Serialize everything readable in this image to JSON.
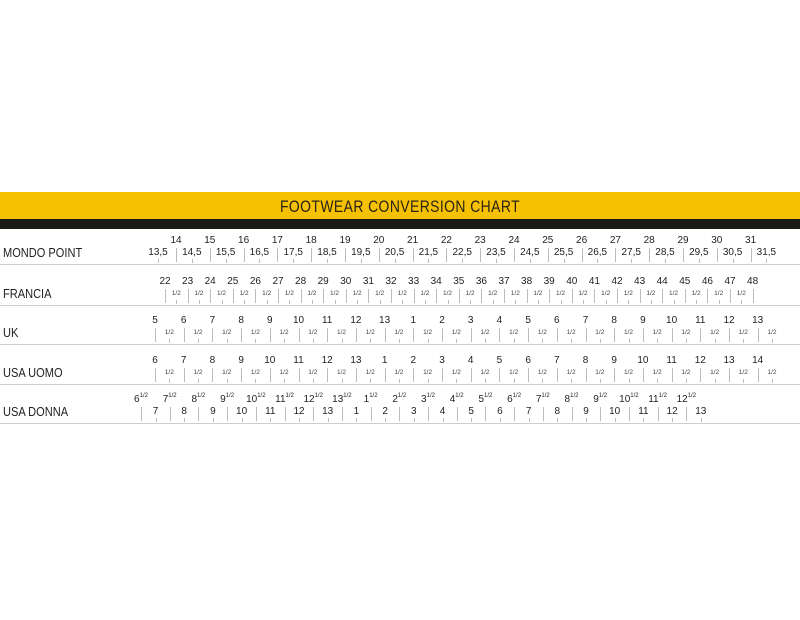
{
  "title": "FOOTWEAR CONVERSION CHART",
  "colors": {
    "band": "#f6c102",
    "bar": "#1c1a17",
    "separator": "#cfcfcf"
  },
  "chart_data": {
    "type": "table",
    "title": "FOOTWEAR CONVERSION CHART",
    "rows": [
      {
        "label": "MONDO POINT",
        "major": [
          "14",
          "15",
          "16",
          "17",
          "18",
          "19",
          "20",
          "21",
          "22",
          "23",
          "24",
          "25",
          "26",
          "27",
          "28",
          "29",
          "30",
          "31"
        ],
        "minor": [
          "13,5",
          "14,5",
          "15,5",
          "16,5",
          "17,5",
          "18,5",
          "19,5",
          "20,5",
          "21,5",
          "22,5",
          "23,5",
          "24,5",
          "25,5",
          "26,5",
          "27,5",
          "28,5",
          "29,5",
          "30,5",
          "31,5"
        ]
      },
      {
        "label": "FRANCIA",
        "major": [
          "22",
          "23",
          "24",
          "25",
          "26",
          "27",
          "28",
          "29",
          "30",
          "31",
          "32",
          "33",
          "34",
          "35",
          "36",
          "37",
          "38",
          "39",
          "40",
          "41",
          "42",
          "43",
          "44",
          "45",
          "46",
          "47",
          "48"
        ],
        "minor": [
          "1/2",
          "1/2",
          "1/2",
          "1/2",
          "1/2",
          "1/2",
          "1/2",
          "1/2",
          "1/2",
          "1/2",
          "1/2",
          "1/2",
          "1/2",
          "1/2",
          "1/2",
          "1/2",
          "1/2",
          "1/2",
          "1/2",
          "1/2",
          "1/2",
          "1/2",
          "1/2",
          "1/2",
          "1/2",
          "1/2"
        ]
      },
      {
        "label": "UK",
        "major": [
          "5",
          "6",
          "7",
          "8",
          "9",
          "10",
          "11",
          "12",
          "13",
          "1",
          "2",
          "3",
          "4",
          "5",
          "6",
          "7",
          "8",
          "9",
          "10",
          "11",
          "12",
          "13"
        ],
        "minor": [
          "1/2",
          "1/2",
          "1/2",
          "1/2",
          "1/2",
          "1/2",
          "1/2",
          "1/2",
          "1/2",
          "1/2",
          "1/2",
          "1/2",
          "1/2",
          "1/2",
          "1/2",
          "1/2",
          "1/2",
          "1/2",
          "1/2",
          "1/2",
          "1/2",
          "1/2"
        ]
      },
      {
        "label": "USA UOMO",
        "major": [
          "6",
          "7",
          "8",
          "9",
          "10",
          "11",
          "12",
          "13",
          "1",
          "2",
          "3",
          "4",
          "5",
          "6",
          "7",
          "8",
          "9",
          "10",
          "11",
          "12",
          "13",
          "14"
        ],
        "minor": [
          "1/2",
          "1/2",
          "1/2",
          "1/2",
          "1/2",
          "1/2",
          "1/2",
          "1/2",
          "1/2",
          "1/2",
          "1/2",
          "1/2",
          "1/2",
          "1/2",
          "1/2",
          "1/2",
          "1/2",
          "1/2",
          "1/2",
          "1/2",
          "1/2",
          "1/2"
        ]
      },
      {
        "label": "USA DONNA",
        "major": [
          {
            "base": "6",
            "sup": "1/2"
          },
          {
            "base": "7",
            "sup": "1/2"
          },
          {
            "base": "8",
            "sup": "1/2"
          },
          {
            "base": "9",
            "sup": "1/2"
          },
          {
            "base": "10",
            "sup": "1/2"
          },
          {
            "base": "11",
            "sup": "1/2"
          },
          {
            "base": "12",
            "sup": "1/2"
          },
          {
            "base": "13",
            "sup": "1/2"
          },
          {
            "base": "1",
            "sup": "1/2"
          },
          {
            "base": "2",
            "sup": "1/2"
          },
          {
            "base": "3",
            "sup": "1/2"
          },
          {
            "base": "4",
            "sup": "1/2"
          },
          {
            "base": "5",
            "sup": "1/2"
          },
          {
            "base": "6",
            "sup": "1/2"
          },
          {
            "base": "7",
            "sup": "1/2"
          },
          {
            "base": "8",
            "sup": "1/2"
          },
          {
            "base": "9",
            "sup": "1/2"
          },
          {
            "base": "10",
            "sup": "1/2"
          },
          {
            "base": "11",
            "sup": "1/2"
          },
          {
            "base": "12",
            "sup": "1/2"
          }
        ],
        "minor": [
          "7",
          "8",
          "9",
          "10",
          "11",
          "12",
          "13",
          "1",
          "2",
          "3",
          "4",
          "5",
          "6",
          "7",
          "8",
          "9",
          "10",
          "11",
          "12",
          "13"
        ]
      }
    ]
  }
}
